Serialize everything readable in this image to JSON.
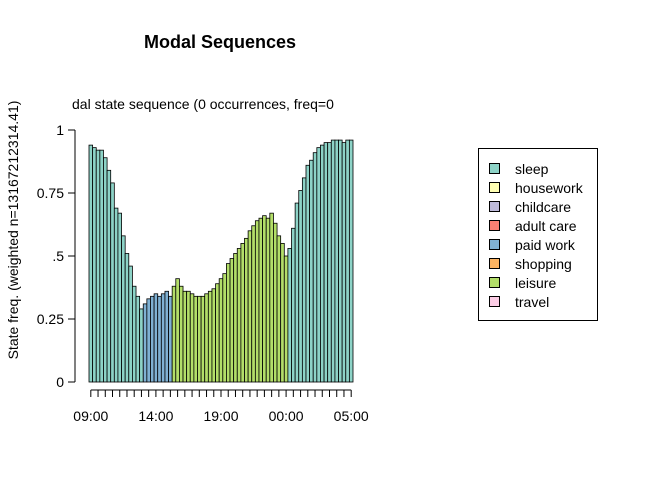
{
  "chart_data": {
    "type": "bar",
    "title": "Modal Sequences",
    "subtitle": "dal state sequence (0 occurrences, freq=0",
    "xlabel": "",
    "ylabel": "State freq. (weighted n=13167212314.41)",
    "ylim": [
      0,
      1
    ],
    "yticks": [
      "0",
      "0.25",
      ".5",
      "0.75",
      "1"
    ],
    "xticks": [
      "09:00",
      "14:00",
      "19:00",
      "00:00",
      "05:00"
    ],
    "legend_position": "right",
    "grid": false,
    "legend": [
      {
        "name": "sleep",
        "color": "#8DD3C7"
      },
      {
        "name": "housework",
        "color": "#FFFFB3"
      },
      {
        "name": "childcare",
        "color": "#BEBADA"
      },
      {
        "name": "adult care",
        "color": "#FB8072"
      },
      {
        "name": "paid work",
        "color": "#80B1D3"
      },
      {
        "name": "shopping",
        "color": "#FDB462"
      },
      {
        "name": "leisure",
        "color": "#B3DE69"
      },
      {
        "name": "travel",
        "color": "#FCCDE5"
      }
    ],
    "bars": [
      {
        "s": "sleep",
        "v": 0.94
      },
      {
        "s": "sleep",
        "v": 0.93
      },
      {
        "s": "sleep",
        "v": 0.92
      },
      {
        "s": "sleep",
        "v": 0.92
      },
      {
        "s": "sleep",
        "v": 0.89
      },
      {
        "s": "sleep",
        "v": 0.84
      },
      {
        "s": "sleep",
        "v": 0.79
      },
      {
        "s": "sleep",
        "v": 0.69
      },
      {
        "s": "sleep",
        "v": 0.67
      },
      {
        "s": "sleep",
        "v": 0.58
      },
      {
        "s": "sleep",
        "v": 0.51
      },
      {
        "s": "sleep",
        "v": 0.46
      },
      {
        "s": "sleep",
        "v": 0.38
      },
      {
        "s": "sleep",
        "v": 0.34
      },
      {
        "s": "sleep",
        "v": 0.29
      },
      {
        "s": "paid work",
        "v": 0.31
      },
      {
        "s": "paid work",
        "v": 0.33
      },
      {
        "s": "paid work",
        "v": 0.34
      },
      {
        "s": "paid work",
        "v": 0.35
      },
      {
        "s": "paid work",
        "v": 0.34
      },
      {
        "s": "paid work",
        "v": 0.35
      },
      {
        "s": "paid work",
        "v": 0.36
      },
      {
        "s": "paid work",
        "v": 0.34
      },
      {
        "s": "leisure",
        "v": 0.38
      },
      {
        "s": "leisure",
        "v": 0.41
      },
      {
        "s": "leisure",
        "v": 0.38
      },
      {
        "s": "leisure",
        "v": 0.36
      },
      {
        "s": "leisure",
        "v": 0.36
      },
      {
        "s": "leisure",
        "v": 0.35
      },
      {
        "s": "leisure",
        "v": 0.34
      },
      {
        "s": "leisure",
        "v": 0.34
      },
      {
        "s": "leisure",
        "v": 0.34
      },
      {
        "s": "leisure",
        "v": 0.35
      },
      {
        "s": "leisure",
        "v": 0.36
      },
      {
        "s": "leisure",
        "v": 0.37
      },
      {
        "s": "leisure",
        "v": 0.39
      },
      {
        "s": "leisure",
        "v": 0.41
      },
      {
        "s": "leisure",
        "v": 0.43
      },
      {
        "s": "leisure",
        "v": 0.47
      },
      {
        "s": "leisure",
        "v": 0.49
      },
      {
        "s": "leisure",
        "v": 0.51
      },
      {
        "s": "leisure",
        "v": 0.53
      },
      {
        "s": "leisure",
        "v": 0.55
      },
      {
        "s": "leisure",
        "v": 0.57
      },
      {
        "s": "leisure",
        "v": 0.6
      },
      {
        "s": "leisure",
        "v": 0.62
      },
      {
        "s": "leisure",
        "v": 0.64
      },
      {
        "s": "leisure",
        "v": 0.65
      },
      {
        "s": "leisure",
        "v": 0.66
      },
      {
        "s": "leisure",
        "v": 0.65
      },
      {
        "s": "leisure",
        "v": 0.67
      },
      {
        "s": "leisure",
        "v": 0.63
      },
      {
        "s": "leisure",
        "v": 0.58
      },
      {
        "s": "leisure",
        "v": 0.55
      },
      {
        "s": "leisure",
        "v": 0.5
      },
      {
        "s": "sleep",
        "v": 0.53
      },
      {
        "s": "sleep",
        "v": 0.61
      },
      {
        "s": "sleep",
        "v": 0.71
      },
      {
        "s": "sleep",
        "v": 0.76
      },
      {
        "s": "sleep",
        "v": 0.81
      },
      {
        "s": "sleep",
        "v": 0.86
      },
      {
        "s": "sleep",
        "v": 0.88
      },
      {
        "s": "sleep",
        "v": 0.91
      },
      {
        "s": "sleep",
        "v": 0.93
      },
      {
        "s": "sleep",
        "v": 0.94
      },
      {
        "s": "sleep",
        "v": 0.95
      },
      {
        "s": "sleep",
        "v": 0.95
      },
      {
        "s": "sleep",
        "v": 0.96
      },
      {
        "s": "sleep",
        "v": 0.96
      },
      {
        "s": "sleep",
        "v": 0.96
      },
      {
        "s": "sleep",
        "v": 0.95
      },
      {
        "s": "sleep",
        "v": 0.96
      },
      {
        "s": "sleep",
        "v": 0.96
      }
    ]
  }
}
